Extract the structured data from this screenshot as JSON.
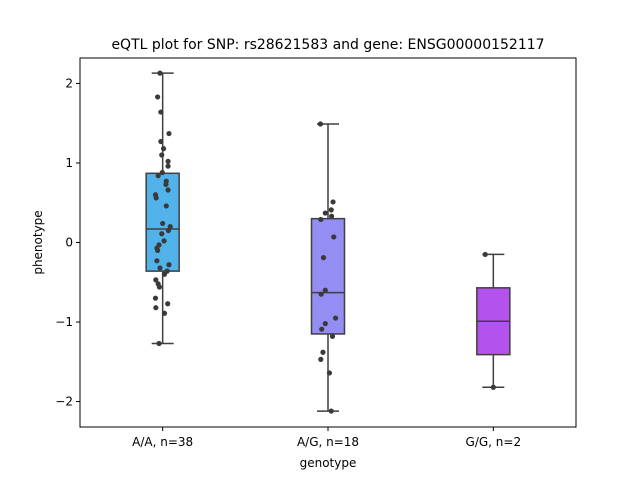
{
  "chart_data": {
    "type": "box",
    "title": "eQTL plot for SNP: rs28621583 and gene: ENSG00000152117",
    "xlabel": "genotype",
    "ylabel": "phenotype",
    "ylim": [
      -2.32,
      2.32
    ],
    "yticks": [
      -2,
      -1,
      0,
      1,
      2
    ],
    "ytick_labels": [
      "−2",
      "−1",
      "0",
      "1",
      "2"
    ],
    "grid": false,
    "categories": [
      "A/A, n=38",
      "A/G, n=18",
      "G/G, n=2"
    ],
    "boxes": [
      {
        "label": "A/A, n=38",
        "color": "#52b3ea",
        "whisker_low": -1.27,
        "q1": -0.36,
        "median": 0.17,
        "q3": 0.87,
        "whisker_high": 2.13,
        "points": [
          {
            "y": 2.13,
            "j": -0.15
          },
          {
            "y": 1.83,
            "j": -0.28
          },
          {
            "y": 1.64,
            "j": -0.1
          },
          {
            "y": 1.37,
            "j": 0.35
          },
          {
            "y": 1.27,
            "j": -0.1
          },
          {
            "y": 1.18,
            "j": 0.05
          },
          {
            "y": 1.1,
            "j": -0.05
          },
          {
            "y": 1.02,
            "j": 0.3
          },
          {
            "y": 0.96,
            "j": 0.3
          },
          {
            "y": 0.88,
            "j": -0.02
          },
          {
            "y": 0.84,
            "j": -0.25
          },
          {
            "y": 0.77,
            "j": 0.2
          },
          {
            "y": 0.73,
            "j": 0.18
          },
          {
            "y": 0.66,
            "j": 0.3
          },
          {
            "y": 0.6,
            "j": -0.4
          },
          {
            "y": 0.56,
            "j": -0.36
          },
          {
            "y": 0.46,
            "j": 0.2
          },
          {
            "y": 0.24,
            "j": 0.0
          },
          {
            "y": 0.2,
            "j": 0.42
          },
          {
            "y": 0.15,
            "j": 0.32
          },
          {
            "y": 0.11,
            "j": -0.05
          },
          {
            "y": 0.02,
            "j": 0.08
          },
          {
            "y": -0.03,
            "j": -0.2
          },
          {
            "y": -0.07,
            "j": -0.32
          },
          {
            "y": -0.1,
            "j": -0.28
          },
          {
            "y": -0.23,
            "j": -0.32
          },
          {
            "y": -0.28,
            "j": 0.35
          },
          {
            "y": -0.32,
            "j": -0.15
          },
          {
            "y": -0.36,
            "j": 0.25
          },
          {
            "y": -0.4,
            "j": 0.1
          },
          {
            "y": -0.47,
            "j": -0.38
          },
          {
            "y": -0.52,
            "j": -0.25
          },
          {
            "y": -0.56,
            "j": -0.18
          },
          {
            "y": -0.7,
            "j": -0.4
          },
          {
            "y": -0.77,
            "j": 0.28
          },
          {
            "y": -0.82,
            "j": -0.38
          },
          {
            "y": -0.89,
            "j": 0.1
          },
          {
            "y": -1.27,
            "j": -0.2
          }
        ]
      },
      {
        "label": "A/G, n=18",
        "color": "#948df3",
        "whisker_low": -2.12,
        "q1": -1.15,
        "median": -0.63,
        "q3": 0.3,
        "whisker_high": 1.49,
        "points": [
          {
            "y": 1.49,
            "j": -0.42
          },
          {
            "y": 0.51,
            "j": 0.28
          },
          {
            "y": 0.41,
            "j": 0.18
          },
          {
            "y": 0.37,
            "j": -0.15
          },
          {
            "y": 0.33,
            "j": 0.2
          },
          {
            "y": 0.29,
            "j": -0.4
          },
          {
            "y": 0.07,
            "j": 0.32
          },
          {
            "y": -0.19,
            "j": -0.25
          },
          {
            "y": -0.6,
            "j": -0.15
          },
          {
            "y": -0.65,
            "j": -0.38
          },
          {
            "y": -0.95,
            "j": 0.42
          },
          {
            "y": -1.02,
            "j": -0.15
          },
          {
            "y": -1.09,
            "j": -0.35
          },
          {
            "y": -1.18,
            "j": 0.25
          },
          {
            "y": -1.38,
            "j": -0.28
          },
          {
            "y": -1.47,
            "j": -0.4
          },
          {
            "y": -1.64,
            "j": 0.08
          },
          {
            "y": -2.12,
            "j": 0.18
          }
        ]
      },
      {
        "label": "G/G, n=2",
        "color": "#b452ee",
        "whisker_low": -1.82,
        "q1": -1.41,
        "median": -0.99,
        "q3": -0.57,
        "whisker_high": -0.15,
        "points": [
          {
            "y": -0.15,
            "j": -0.45
          },
          {
            "y": -1.82,
            "j": 0.0
          }
        ]
      }
    ]
  }
}
